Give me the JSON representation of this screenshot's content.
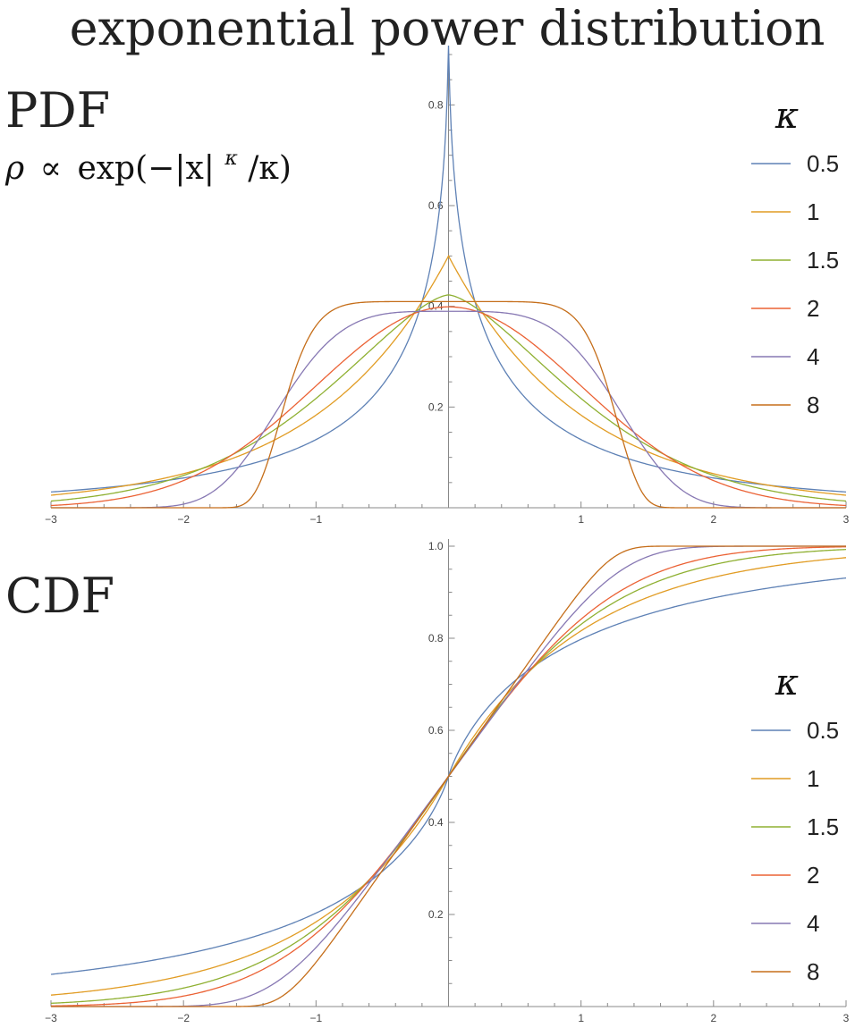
{
  "title": "exponential power distribution",
  "formula": {
    "rho": "ρ",
    "propto": "∝",
    "text": "exp(−|x|",
    "sup": "κ",
    "tail": "/κ)"
  },
  "colors": {
    "0.5": "#5e81b5",
    "1": "#e19c24",
    "1.5": "#8fb032",
    "2": "#eb6235",
    "4": "#8778b3",
    "8": "#c56e1a",
    "axis": "#888888",
    "text": "#222222"
  },
  "chart_data": [
    {
      "type": "line",
      "title": "PDF",
      "function": "pdf",
      "xlim": [
        -3,
        3
      ],
      "ylim": [
        0,
        0.9
      ],
      "x_ticks": [
        -3,
        -2,
        -1,
        1,
        2,
        3
      ],
      "x_tick_labels": [
        "−3",
        "−2",
        "−1",
        "1",
        "2",
        "3"
      ],
      "y_ticks": [
        0.2,
        0.4,
        0.6,
        0.8
      ],
      "y_tick_labels": [
        "0.2",
        "0.4",
        "0.6",
        "0.8"
      ],
      "legend_title": "κ",
      "legend_placement": "right",
      "series": [
        {
          "name": "0.5",
          "kappa": 0.5
        },
        {
          "name": "1",
          "kappa": 1
        },
        {
          "name": "1.5",
          "kappa": 1.5
        },
        {
          "name": "2",
          "kappa": 2
        },
        {
          "name": "4",
          "kappa": 4
        },
        {
          "name": "8",
          "kappa": 8
        }
      ]
    },
    {
      "type": "line",
      "title": "CDF",
      "function": "cdf",
      "xlim": [
        -3,
        3
      ],
      "ylim": [
        0,
        1.0
      ],
      "x_ticks": [
        -3,
        -2,
        -1,
        1,
        2,
        3
      ],
      "x_tick_labels": [
        "−3",
        "−2",
        "−1",
        "1",
        "2",
        "3"
      ],
      "y_ticks": [
        0.2,
        0.4,
        0.6,
        0.8,
        1.0
      ],
      "y_tick_labels": [
        "0.2",
        "0.4",
        "0.6",
        "0.8",
        "1.0"
      ],
      "legend_title": "κ",
      "legend_placement": "right",
      "series": [
        {
          "name": "0.5",
          "kappa": 0.5
        },
        {
          "name": "1",
          "kappa": 1
        },
        {
          "name": "1.5",
          "kappa": 1.5
        },
        {
          "name": "2",
          "kappa": 2
        },
        {
          "name": "4",
          "kappa": 4
        },
        {
          "name": "8",
          "kappa": 8
        }
      ]
    }
  ]
}
